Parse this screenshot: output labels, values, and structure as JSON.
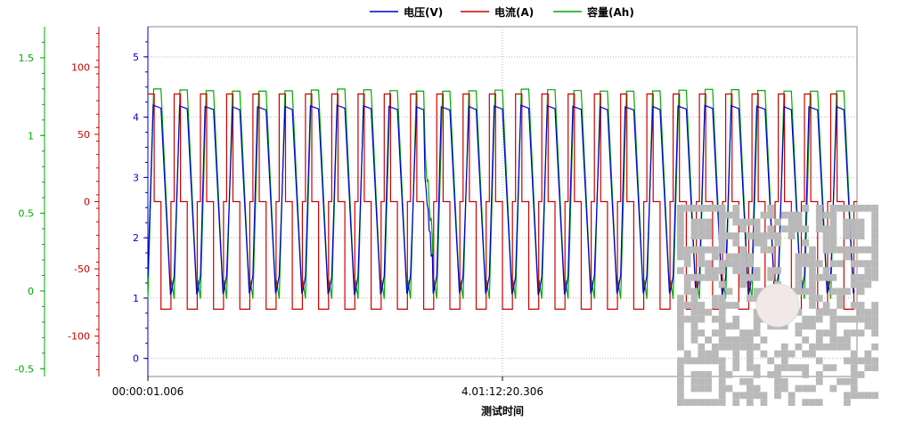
{
  "chart_data": {
    "type": "line",
    "legend": {
      "placement": "top-center",
      "entries": [
        {
          "label": "电压(V)",
          "color": "#0000cc"
        },
        {
          "label": "电流(A)",
          "color": "#cc0000"
        },
        {
          "label": "容量(Ah)",
          "color": "#00aa00"
        }
      ]
    },
    "xlabel": "测试时间",
    "x_ticks": [
      "00:00:01.006",
      "4.01:12:20.306"
    ],
    "axes": {
      "voltage": {
        "label": "电压(V)",
        "ylim": [
          -0.3,
          5.5
        ],
        "ticks": [
          0,
          1,
          2,
          3,
          4,
          5
        ],
        "color": "#0000cc"
      },
      "current": {
        "label": "电流(A)",
        "ylim": [
          -130,
          130
        ],
        "ticks": [
          -100,
          -50,
          0,
          50,
          100
        ],
        "color": "#cc0000"
      },
      "capacity": {
        "label": "容量(Ah)",
        "ylim": [
          -0.55,
          1.7
        ],
        "ticks": [
          -0.5,
          0,
          0.5,
          1,
          1.5
        ],
        "color": "#00aa00"
      }
    },
    "grid": true,
    "cycles": 27,
    "series": [
      {
        "name": "电压(V)",
        "axis": "voltage",
        "color": "#0000cc",
        "high": 4.2,
        "low": 1.05
      },
      {
        "name": "电流(A)",
        "axis": "current",
        "color": "#cc0000",
        "charge": 80,
        "rest": 0,
        "discharge": -80
      },
      {
        "name": "容量(Ah)",
        "axis": "capacity",
        "color": "#00aa00",
        "max": 1.3,
        "min": -0.05
      }
    ]
  },
  "watermark": {
    "type": "qr-code"
  }
}
